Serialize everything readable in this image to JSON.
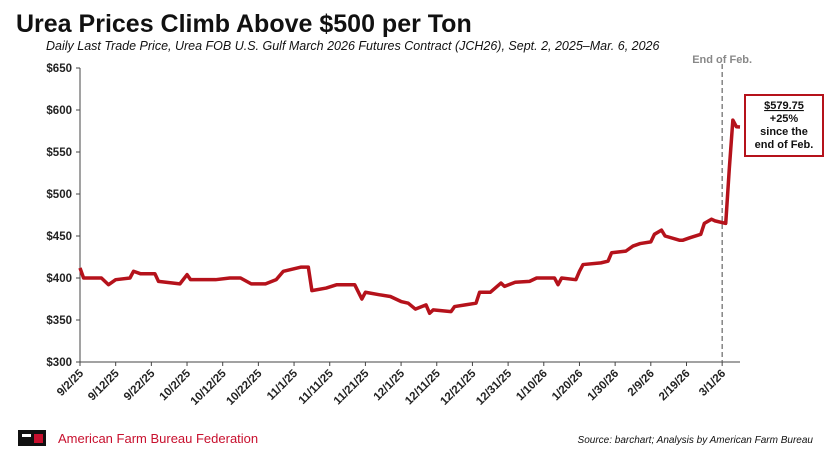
{
  "chart_data": {
    "type": "line",
    "title": "Urea Prices Climb Above $500 per Ton",
    "subtitle": "Daily Last Trade Price, Urea FOB U.S. Gulf March 2026 Futures Contract (JCH26), Sept. 2, 2025–Mar. 6, 2026",
    "x": [
      "2025-09-02",
      "2025-09-03",
      "2025-09-08",
      "2025-09-10",
      "2025-09-12",
      "2025-09-16",
      "2025-09-17",
      "2025-09-19",
      "2025-09-23",
      "2025-09-24",
      "2025-09-30",
      "2025-10-02",
      "2025-10-03",
      "2025-10-10",
      "2025-10-14",
      "2025-10-17",
      "2025-10-20",
      "2025-10-24",
      "2025-10-27",
      "2025-10-29",
      "2025-11-03",
      "2025-11-05",
      "2025-11-06",
      "2025-11-10",
      "2025-11-13",
      "2025-11-18",
      "2025-11-20",
      "2025-11-21",
      "2025-11-25",
      "2025-11-28",
      "2025-12-01",
      "2025-12-03",
      "2025-12-05",
      "2025-12-08",
      "2025-12-09",
      "2025-12-10",
      "2025-12-15",
      "2025-12-16",
      "2025-12-19",
      "2025-12-22",
      "2025-12-23",
      "2025-12-26",
      "2025-12-29",
      "2025-12-30",
      "2026-01-02",
      "2026-01-06",
      "2026-01-08",
      "2026-01-13",
      "2026-01-14",
      "2026-01-15",
      "2026-01-19",
      "2026-01-20",
      "2026-01-21",
      "2026-01-26",
      "2026-01-28",
      "2026-01-29",
      "2026-02-02",
      "2026-02-04",
      "2026-02-06",
      "2026-02-09",
      "2026-02-10",
      "2026-02-12",
      "2026-02-13",
      "2026-02-17",
      "2026-02-18",
      "2026-02-20",
      "2026-02-23",
      "2026-02-24",
      "2026-02-26",
      "2026-02-27",
      "2026-03-02",
      "2026-03-03",
      "2026-03-04",
      "2026-03-05",
      "2026-03-06"
    ],
    "values": [
      412,
      400,
      400,
      392,
      398,
      400,
      408,
      405,
      405,
      396,
      393,
      404,
      398,
      398,
      400,
      400,
      393,
      393,
      398,
      408,
      413,
      413,
      385,
      388,
      392,
      392,
      375,
      383,
      380,
      378,
      372,
      370,
      363,
      368,
      358,
      362,
      360,
      366,
      368,
      370,
      383,
      383,
      394,
      390,
      395,
      396,
      400,
      400,
      392,
      400,
      398,
      408,
      416,
      418,
      420,
      430,
      432,
      438,
      441,
      443,
      452,
      457,
      450,
      445,
      445,
      448,
      452,
      465,
      470,
      468,
      465,
      530,
      588,
      580,
      579.75
    ],
    "color": "#b5121b",
    "xlim": [
      "2025-09-02",
      "2026-03-06"
    ],
    "xticks": [
      {
        "value": "2025-09-02",
        "label": "9/2/25"
      },
      {
        "value": "2025-09-12",
        "label": "9/12/25"
      },
      {
        "value": "2025-09-22",
        "label": "9/22/25"
      },
      {
        "value": "2025-10-02",
        "label": "10/2/25"
      },
      {
        "value": "2025-10-12",
        "label": "10/12/25"
      },
      {
        "value": "2025-10-22",
        "label": "10/22/25"
      },
      {
        "value": "2025-11-01",
        "label": "11/1/25"
      },
      {
        "value": "2025-11-11",
        "label": "11/11/25"
      },
      {
        "value": "2025-11-21",
        "label": "11/21/25"
      },
      {
        "value": "2025-12-01",
        "label": "12/1/25"
      },
      {
        "value": "2025-12-11",
        "label": "12/11/25"
      },
      {
        "value": "2025-12-21",
        "label": "12/21/25"
      },
      {
        "value": "2025-12-31",
        "label": "12/31/25"
      },
      {
        "value": "2026-01-10",
        "label": "1/10/26"
      },
      {
        "value": "2026-01-20",
        "label": "1/20/26"
      },
      {
        "value": "2026-01-30",
        "label": "1/30/26"
      },
      {
        "value": "2026-02-09",
        "label": "2/9/26"
      },
      {
        "value": "2026-02-19",
        "label": "2/19/26"
      },
      {
        "value": "2026-03-01",
        "label": "3/1/26"
      }
    ],
    "ylim": [
      300,
      650
    ],
    "yticks": [
      {
        "value": 300,
        "label": "$300"
      },
      {
        "value": 350,
        "label": "$350"
      },
      {
        "value": 400,
        "label": "$400"
      },
      {
        "value": 450,
        "label": "$450"
      },
      {
        "value": 500,
        "label": "$500"
      },
      {
        "value": 550,
        "label": "$550"
      },
      {
        "value": 600,
        "label": "$600"
      },
      {
        "value": 650,
        "label": "$650"
      }
    ],
    "annotations": [
      {
        "x": "2026-03-01",
        "text": "End of Feb."
      },
      {
        "lines": [
          "$579.75",
          "+25%",
          "since the",
          "end of Feb."
        ]
      }
    ],
    "source": "Source: barchart; Analysis by American Farm Bureau",
    "brand": "American Farm Bureau Federation"
  }
}
